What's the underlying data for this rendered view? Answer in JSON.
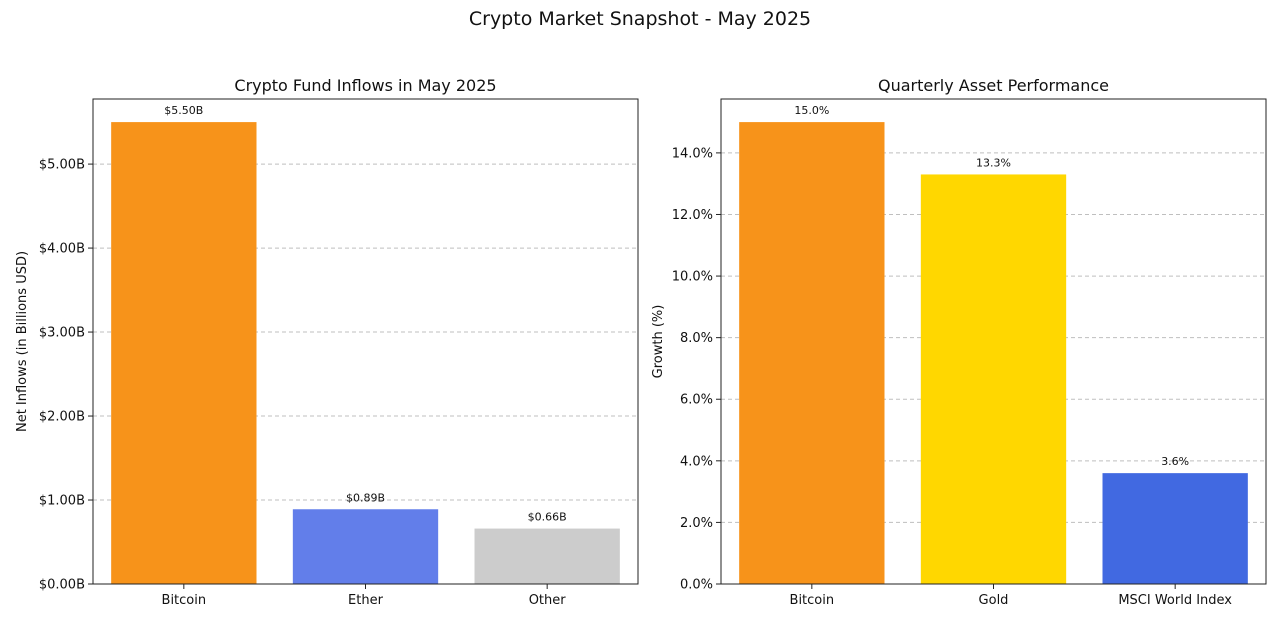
{
  "figure": {
    "title": "Crypto Market Snapshot - May 2025"
  },
  "chart_data": [
    {
      "type": "bar",
      "title": "Crypto Fund Inflows in May 2025",
      "xlabel": "",
      "ylabel": "Net Inflows (in Billions USD)",
      "categories": [
        "Bitcoin",
        "Ether",
        "Other"
      ],
      "values": [
        5.5,
        0.89,
        0.66
      ],
      "data_labels": [
        "$5.50B",
        "$0.89B",
        "$0.66B"
      ],
      "colors": [
        "#f7931a",
        "#627eea",
        "#cccccc"
      ],
      "ylim": [
        0,
        5.775
      ],
      "yticks": [
        0,
        1,
        2,
        3,
        4,
        5
      ],
      "ytick_labels": [
        "$0.00B",
        "$1.00B",
        "$2.00B",
        "$3.00B",
        "$4.00B",
        "$5.00B"
      ],
      "grid": "y-dashed"
    },
    {
      "type": "bar",
      "title": "Quarterly Asset Performance",
      "xlabel": "",
      "ylabel": "Growth (%)",
      "categories": [
        "Bitcoin",
        "Gold",
        "MSCI World Index"
      ],
      "values": [
        15.0,
        13.3,
        3.6
      ],
      "data_labels": [
        "15.0%",
        "13.3%",
        "3.6%"
      ],
      "colors": [
        "#f7931a",
        "#ffd700",
        "#4169e1"
      ],
      "ylim": [
        0,
        15.75
      ],
      "yticks": [
        0,
        2,
        4,
        6,
        8,
        10,
        12,
        14
      ],
      "ytick_labels": [
        "0.0%",
        "2.0%",
        "4.0%",
        "6.0%",
        "8.0%",
        "10.0%",
        "12.0%",
        "14.0%"
      ],
      "grid": "y-dashed"
    }
  ]
}
